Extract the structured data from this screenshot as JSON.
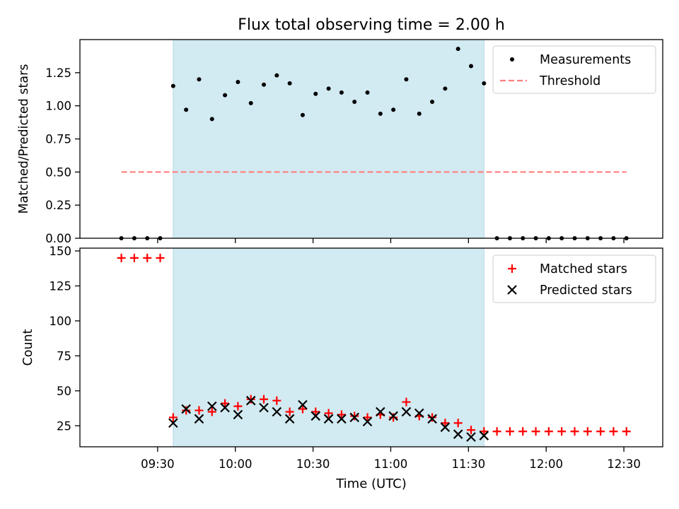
{
  "chart_data": [
    {
      "type": "scatter",
      "title": "Flux total observing time = 2.00 h",
      "xlabel": "",
      "ylabel": "Matched/Predicted stars",
      "ylim": [
        0,
        1.5
      ],
      "yticks": [
        "0.00",
        "0.25",
        "0.50",
        "0.75",
        "1.00",
        "1.25"
      ],
      "ytick_values": [
        0,
        0.25,
        0.5,
        0.75,
        1.0,
        1.25
      ],
      "xlim": [
        "09:00",
        "12:45"
      ],
      "shaded_interval": [
        "09:36",
        "11:36"
      ],
      "shade_color": "#add8e6",
      "legend_position": "upper right",
      "series": [
        {
          "name": "Measurements",
          "marker": "dot",
          "color": "#000000",
          "points": [
            [
              "09:16",
              0
            ],
            [
              "09:21",
              0
            ],
            [
              "09:26",
              0
            ],
            [
              "09:31",
              0
            ],
            [
              "09:36",
              1.15
            ],
            [
              "09:41",
              0.97
            ],
            [
              "09:46",
              1.2
            ],
            [
              "09:51",
              0.9
            ],
            [
              "09:56",
              1.08
            ],
            [
              "10:01",
              1.18
            ],
            [
              "10:06",
              1.02
            ],
            [
              "10:11",
              1.16
            ],
            [
              "10:16",
              1.23
            ],
            [
              "10:21",
              1.17
            ],
            [
              "10:26",
              0.93
            ],
            [
              "10:31",
              1.09
            ],
            [
              "10:36",
              1.13
            ],
            [
              "10:41",
              1.1
            ],
            [
              "10:46",
              1.03
            ],
            [
              "10:51",
              1.1
            ],
            [
              "10:56",
              0.94
            ],
            [
              "11:01",
              0.97
            ],
            [
              "11:06",
              1.2
            ],
            [
              "11:11",
              0.94
            ],
            [
              "11:16",
              1.03
            ],
            [
              "11:21",
              1.13
            ],
            [
              "11:26",
              1.43
            ],
            [
              "11:31",
              1.3
            ],
            [
              "11:36",
              1.17
            ],
            [
              "11:41",
              0
            ],
            [
              "11:46",
              0
            ],
            [
              "11:51",
              0
            ],
            [
              "11:56",
              0
            ],
            [
              "12:01",
              0
            ],
            [
              "12:06",
              0
            ],
            [
              "12:11",
              0
            ],
            [
              "12:16",
              0
            ],
            [
              "12:21",
              0
            ],
            [
              "12:26",
              0
            ],
            [
              "12:31",
              0
            ]
          ]
        },
        {
          "name": "Threshold",
          "marker": "dashed-line",
          "color": "#ff7f7f",
          "points": [
            [
              "09:16",
              0.5
            ],
            [
              "12:31",
              0.5
            ]
          ]
        }
      ]
    },
    {
      "type": "scatter",
      "xlabel": "Time (UTC)",
      "ylabel": "Count",
      "ylim": [
        10,
        152
      ],
      "yticks": [
        "25",
        "50",
        "75",
        "100",
        "125",
        "150"
      ],
      "ytick_values": [
        25,
        50,
        75,
        100,
        125,
        150
      ],
      "xlim": [
        "09:00",
        "12:45"
      ],
      "xticks": [
        "09:30",
        "10:00",
        "10:30",
        "11:00",
        "11:30",
        "12:00",
        "12:30"
      ],
      "shaded_interval": [
        "09:36",
        "11:36"
      ],
      "shade_color": "#add8e6",
      "legend_position": "upper right",
      "series": [
        {
          "name": "Matched stars",
          "marker": "plus",
          "color": "#ff0000",
          "points": [
            [
              "09:16",
              145
            ],
            [
              "09:21",
              145
            ],
            [
              "09:26",
              145
            ],
            [
              "09:31",
              145
            ],
            [
              "09:36",
              31
            ],
            [
              "09:41",
              36
            ],
            [
              "09:46",
              36
            ],
            [
              "09:51",
              35
            ],
            [
              "09:56",
              41
            ],
            [
              "10:01",
              39
            ],
            [
              "10:06",
              44
            ],
            [
              "10:11",
              44
            ],
            [
              "10:16",
              43
            ],
            [
              "10:21",
              35
            ],
            [
              "10:26",
              37
            ],
            [
              "10:31",
              35
            ],
            [
              "10:36",
              34
            ],
            [
              "10:41",
              33
            ],
            [
              "10:46",
              32
            ],
            [
              "10:51",
              31
            ],
            [
              "10:56",
              33
            ],
            [
              "11:01",
              31
            ],
            [
              "11:06",
              42
            ],
            [
              "11:11",
              32
            ],
            [
              "11:16",
              31
            ],
            [
              "11:21",
              27
            ],
            [
              "11:26",
              27
            ],
            [
              "11:31",
              22
            ],
            [
              "11:36",
              21
            ],
            [
              "11:41",
              21
            ],
            [
              "11:46",
              21
            ],
            [
              "11:51",
              21
            ],
            [
              "11:56",
              21
            ],
            [
              "12:01",
              21
            ],
            [
              "12:06",
              21
            ],
            [
              "12:11",
              21
            ],
            [
              "12:16",
              21
            ],
            [
              "12:21",
              21
            ],
            [
              "12:26",
              21
            ],
            [
              "12:31",
              21
            ]
          ]
        },
        {
          "name": "Predicted stars",
          "marker": "x",
          "color": "#000000",
          "points": [
            [
              "09:36",
              27
            ],
            [
              "09:41",
              37
            ],
            [
              "09:46",
              30
            ],
            [
              "09:51",
              39
            ],
            [
              "09:56",
              38
            ],
            [
              "10:01",
              33
            ],
            [
              "10:06",
              43
            ],
            [
              "10:11",
              38
            ],
            [
              "10:16",
              35
            ],
            [
              "10:21",
              30
            ],
            [
              "10:26",
              40
            ],
            [
              "10:31",
              32
            ],
            [
              "10:36",
              30
            ],
            [
              "10:41",
              30
            ],
            [
              "10:46",
              31
            ],
            [
              "10:51",
              28
            ],
            [
              "10:56",
              35
            ],
            [
              "11:01",
              32
            ],
            [
              "11:06",
              35
            ],
            [
              "11:11",
              34
            ],
            [
              "11:16",
              30
            ],
            [
              "11:21",
              24
            ],
            [
              "11:26",
              19
            ],
            [
              "11:31",
              17
            ],
            [
              "11:36",
              18
            ]
          ]
        }
      ]
    }
  ]
}
